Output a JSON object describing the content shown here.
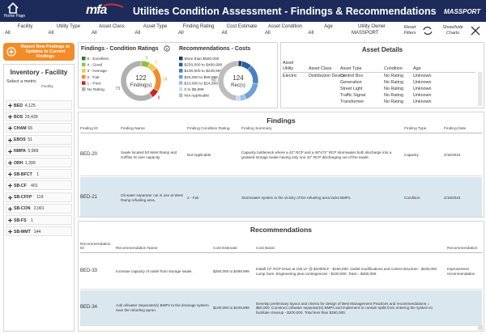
{
  "header": {
    "home": "Home Page",
    "logo": "mfa",
    "title": "Utilities Condition Assessment - Findings & Recommendations",
    "brand": "MASSPORT"
  },
  "filters": [
    {
      "label": "Facility",
      "value": "All"
    },
    {
      "label": "Utility Type",
      "value": "All"
    },
    {
      "label": "Asset Class",
      "value": "All"
    },
    {
      "label": "Asset Type",
      "value": "All"
    },
    {
      "label": "Finding Rating",
      "value": "All"
    },
    {
      "label": "Cost Estimate",
      "value": "All"
    },
    {
      "label": "Asset Condition",
      "value": "All"
    },
    {
      "label": "Age",
      "value": "All"
    },
    {
      "label": "Utility Owner",
      "value": "MASSPORT"
    }
  ],
  "controls": {
    "reset": "Reset Filters",
    "toggle": "Show/hide Charts"
  },
  "report_button": "Report New Findings or Updates to Current Findings",
  "inventory": {
    "title": "Inventory - Facility",
    "prompt": "Select a metric",
    "column": "Facility",
    "items": [
      {
        "name": "BED",
        "count": "4,125"
      },
      {
        "name": "BOS",
        "count": "29,439"
      },
      {
        "name": "CHAM",
        "count": "65"
      },
      {
        "name": "EBOS",
        "count": "51"
      },
      {
        "name": "NMPA",
        "count": "5,969"
      },
      {
        "name": "ORH",
        "count": "1,399"
      },
      {
        "name": "SB-BFCT",
        "count": "1"
      },
      {
        "name": "SB-CF",
        "count": "401"
      },
      {
        "name": "SB-CFFP",
        "count": "119"
      },
      {
        "name": "SB-CON",
        "count": "2,001"
      },
      {
        "name": "SB-FS",
        "count": "1"
      },
      {
        "name": "SB-MMT",
        "count": "144"
      }
    ]
  },
  "chart_data": [
    {
      "type": "pie",
      "title": "Findings - Condition Ratings",
      "total": 122,
      "center_label": "Finding(s)",
      "categories": [
        "5 - Excellent",
        "4 - Good",
        "3 - Average",
        "2 - Fair",
        "1 - Poor",
        "No Rating"
      ],
      "values": [
        0,
        9,
        8,
        24,
        8,
        73
      ],
      "value_labels": [
        null,
        "9",
        "8",
        "24",
        "8",
        "73"
      ],
      "colors": [
        "#2e7d32",
        "#8bc34a",
        "#f2c94c",
        "#f28c28",
        "#c62828",
        "#b0b0b0"
      ]
    },
    {
      "type": "pie",
      "title": "Recommendations - Costs",
      "total": 124,
      "center_label": "Rec(s)",
      "categories": [
        "More than $500,000",
        "$250,000 to $499,999",
        "$100,000 to $249,999",
        "$25,000 to $99,999",
        "$10,000 to $24,999",
        "0 to $9,999",
        "Not Applicable"
      ],
      "values": [
        4,
        10,
        20,
        20,
        6,
        4,
        60
      ],
      "value_labels": [
        null,
        null,
        null,
        null,
        null,
        null,
        "60"
      ],
      "colors": [
        "#1f3b73",
        "#2f5f9e",
        "#4a7fc1",
        "#6fa0d6",
        "#9cc0e6",
        "#c8ddf2",
        "#bdbdbd"
      ]
    }
  ],
  "asset_details": {
    "title": "Asset Details",
    "columns": [
      "Asset Utility",
      "Asset Class",
      "Asset Type",
      "Condition",
      "Age"
    ],
    "rows": [
      [
        "Electric",
        "Distribution Device",
        "Control Box",
        "No Rating",
        "Unknown"
      ],
      [
        null,
        null,
        "Generation",
        "No Rating",
        "Unknown"
      ],
      [
        null,
        null,
        "Street Light",
        "No Rating",
        "Unknown"
      ],
      [
        null,
        null,
        "Traffic Signal",
        "No Rating",
        "Unknown"
      ],
      [
        null,
        null,
        "Transformer",
        "No Rating",
        "Unknown"
      ]
    ]
  },
  "findings": {
    "title": "Findings",
    "columns": [
      "Finding ID",
      "Finding Name",
      "Finding Condition Rating",
      "Finding Summary",
      "Finding Type",
      "Finding Date"
    ],
    "rows": [
      [
        "BED-20",
        "Swale located b/t West Ramp and Griffiss St over capacity.",
        "Not Applicable",
        "Capacity bottleneck where a 42\" RCP and a 48\"x72\" RCP stormwater both discharge into a grassed storage swale having only one 42\" RCP discharging out of the swale.",
        "Capacity",
        "2/16/2024"
      ],
      [
        "BED-21",
        "Oil water separator not in use at West Ramp refueling area.",
        "2 - Fair",
        "Stormwater system in the vicinity of the refueling area lacks BMPs.",
        "Condition",
        "2/16/2024"
      ]
    ]
  },
  "recommendations": {
    "title": "Recommendations",
    "columns": [
      "Recommendation ID",
      "Recommendation Name",
      "Cost Estimate",
      "Cost Basis",
      "Recommendation"
    ],
    "rows": [
      [
        "BED-33",
        "Increase capacity of outlet from storage swale.",
        "$250,000 to $499,999",
        "Install 72\" RCP Drain at 150 LF @ $1000/LF - $150,000. Outlet modifications and control structure - $100,000 Lump Sum. Engineering plus contingencies - $100,000. Total = $400,000.",
        "Improvement recommendation"
      ],
      [
        "BED-34",
        "Add oil/water Separator(s) BMPs to the drainage system near the refueling apron.",
        "$100,000 to $249,999",
        "Develop preliminary layout and criteria for design of Best Management Practices and recommendations = $50,000. Construct oil/water separator(s) BMPs and implement to contain spills from entering the system to facilitate cleanup - $200,000. Total less than $250,000."
      ]
    ]
  }
}
